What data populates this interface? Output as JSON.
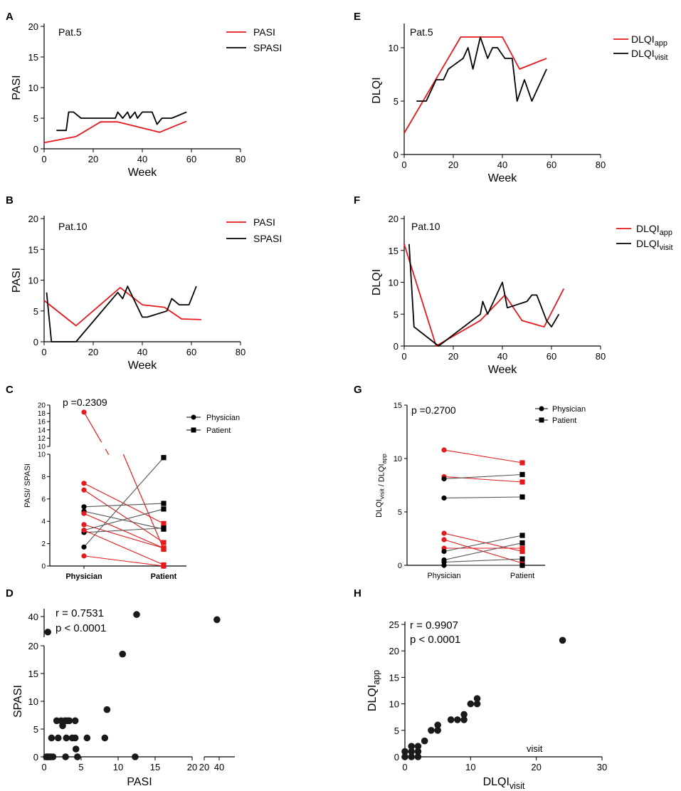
{
  "colors": {
    "red": "#e41a1c",
    "black": "#000000",
    "grey": "#777777"
  },
  "chart_data": [
    {
      "panel": "A",
      "type": "line",
      "annotation": "Pat.5",
      "xlabel": "Week",
      "ylabel": "PASI",
      "xlim": [
        0,
        80
      ],
      "ylim": [
        0,
        20
      ],
      "xticks": [
        "0",
        "20",
        "40",
        "60",
        "80"
      ],
      "yticks": [
        "0",
        "5",
        "10",
        "15",
        "20"
      ],
      "series": [
        {
          "name": "PASI",
          "color": "red",
          "x": [
            0,
            13,
            23,
            30,
            47,
            58
          ],
          "y": [
            1,
            2,
            4.4,
            4.4,
            2.7,
            4.5
          ]
        },
        {
          "name": "SPASI",
          "color": "black",
          "x": [
            5,
            9,
            10,
            12,
            15,
            24,
            29,
            30,
            32,
            34,
            35,
            37,
            38,
            40,
            42,
            44,
            46,
            48,
            50,
            52,
            58
          ],
          "y": [
            3,
            3,
            6,
            6,
            5,
            5,
            5,
            6,
            5,
            6,
            5,
            6,
            5,
            6,
            6,
            6,
            4,
            5,
            5,
            5,
            6
          ]
        }
      ]
    },
    {
      "panel": "B",
      "type": "line",
      "annotation": "Pat.10",
      "xlabel": "Week",
      "ylabel": "PASI",
      "xlim": [
        0,
        80
      ],
      "ylim": [
        0,
        20
      ],
      "xticks": [
        "0",
        "20",
        "40",
        "60",
        "80"
      ],
      "yticks": [
        "0",
        "5",
        "10",
        "15",
        "20"
      ],
      "series": [
        {
          "name": "PASI",
          "color": "red",
          "x": [
            0,
            13,
            31,
            40,
            49,
            56,
            64
          ],
          "y": [
            6.7,
            2.6,
            8.8,
            6,
            5.6,
            3.7,
            3.6
          ]
        },
        {
          "name": "SPASI",
          "color": "black",
          "x": [
            1,
            3,
            13,
            30,
            32,
            34,
            40,
            42,
            50,
            52,
            55,
            56,
            59,
            62
          ],
          "y": [
            8,
            0,
            0,
            8,
            7,
            9,
            4,
            4,
            5,
            7,
            6,
            6,
            6,
            9
          ]
        }
      ]
    },
    {
      "panel": "C",
      "type": "paired-scatter",
      "p_text": "p =0.2309",
      "ylabel": "PASI/ SPASI",
      "categories": [
        "Physician",
        "Patient"
      ],
      "legend": [
        "Physician",
        "Patient"
      ],
      "ylim_lower": [
        0,
        10
      ],
      "ylim_upper": [
        10,
        20
      ],
      "yticks_lower": [
        "0",
        "2",
        "4",
        "6",
        "8",
        "10"
      ],
      "yticks_upper": [
        "10",
        "12",
        "14",
        "16",
        "18",
        "20"
      ],
      "pairs": [
        {
          "a": 18.3,
          "b": 1.5,
          "color": "red"
        },
        {
          "a": 7.4,
          "b": 3.8,
          "color": "red"
        },
        {
          "a": 6.8,
          "b": 2.1,
          "color": "red"
        },
        {
          "a": 5.3,
          "b": 5.6,
          "color": "black"
        },
        {
          "a": 4.9,
          "b": 3.3,
          "color": "black"
        },
        {
          "a": 4.7,
          "b": 1.6,
          "color": "red"
        },
        {
          "a": 3.7,
          "b": 1.6,
          "color": "red"
        },
        {
          "a": 3.2,
          "b": 5.1,
          "color": "black"
        },
        {
          "a": 3.0,
          "b": 3.4,
          "color": "black"
        },
        {
          "a": 3.2,
          "b": 0.1,
          "color": "red"
        },
        {
          "a": 1.7,
          "b": 9.7,
          "color": "black"
        },
        {
          "a": 0.9,
          "b": 0.0,
          "color": "red"
        }
      ]
    },
    {
      "panel": "D",
      "type": "scatter",
      "r_text": "r = 0.7531",
      "p_text": "p < 0.0001",
      "xlabel": "PASI",
      "ylabel": "SPASI",
      "xticks": [
        "0",
        "5",
        "10",
        "15",
        "20",
        "20",
        "40"
      ],
      "yticks": [
        "0",
        "5",
        "10",
        "15",
        "20",
        "40"
      ],
      "x": [
        0.3,
        0.4,
        0.5,
        0.6,
        0.8,
        0.9,
        1.2,
        1.0,
        1.7,
        1.9,
        2.3,
        2.5,
        2.8,
        2.9,
        3.0,
        3.1,
        3.4,
        3.8,
        4.2,
        4.2,
        4.3,
        4.5,
        5.8,
        8.2,
        8.5,
        10.6,
        12.3,
        12.5,
        37.0,
        0.5
      ],
      "y": [
        0,
        0,
        0,
        0,
        0,
        0,
        0,
        3.4,
        6.5,
        3.4,
        6.5,
        5.6,
        6.5,
        0,
        3.4,
        6.5,
        6.5,
        3.4,
        6.5,
        3.4,
        1.4,
        0,
        3.4,
        3.4,
        8.5,
        18.5,
        0,
        42,
        37,
        25
      ]
    },
    {
      "panel": "E",
      "type": "line",
      "annotation": "Pat.5",
      "xlabel": "Week",
      "ylabel": "DLQI",
      "xlim": [
        0,
        80
      ],
      "ylim": [
        0,
        12
      ],
      "xticks": [
        "0",
        "20",
        "40",
        "60",
        "80"
      ],
      "yticks": [
        "0",
        "5",
        "10"
      ],
      "legend_labels": [
        {
          "base": "DLQI",
          "sub": "app"
        },
        {
          "base": "DLQI",
          "sub": "visit"
        }
      ],
      "series": [
        {
          "name": "DLQIapp",
          "color": "red",
          "x": [
            0,
            23,
            40,
            47,
            58
          ],
          "y": [
            2,
            11,
            11,
            8,
            9
          ]
        },
        {
          "name": "DLQIvisit",
          "color": "black",
          "x": [
            5,
            9,
            13,
            16,
            18,
            24,
            26,
            28,
            31,
            34,
            36,
            38,
            41,
            44,
            46,
            49,
            52,
            58
          ],
          "y": [
            5,
            5,
            7,
            7,
            8,
            9,
            10,
            8,
            11,
            9,
            10,
            10,
            9,
            9,
            5,
            7,
            5,
            8
          ]
        }
      ]
    },
    {
      "panel": "F",
      "type": "line",
      "annotation": "Pat.10",
      "xlabel": "Week",
      "ylabel": "DLQI",
      "xlim": [
        0,
        80
      ],
      "ylim": [
        0,
        20
      ],
      "xticks": [
        "0",
        "20",
        "40",
        "60",
        "80"
      ],
      "yticks": [
        "0",
        "5",
        "10",
        "15",
        "20"
      ],
      "legend_labels": [
        {
          "base": "DLQI",
          "sub": "app"
        },
        {
          "base": "DLQI",
          "sub": "visit"
        }
      ],
      "series": [
        {
          "name": "DLQIapp",
          "color": "red",
          "x": [
            0,
            13,
            31,
            41,
            48,
            57,
            65
          ],
          "y": [
            16,
            0,
            4,
            8,
            4,
            3,
            9
          ]
        },
        {
          "name": "DLQIvisit",
          "color": "black",
          "x": [
            2,
            4,
            14,
            31,
            32,
            34,
            40,
            42,
            50,
            52,
            54,
            55,
            58,
            60,
            63
          ],
          "y": [
            16,
            3,
            0,
            5,
            7,
            5,
            10,
            6,
            7,
            8,
            8,
            7,
            4,
            3,
            5
          ]
        }
      ]
    },
    {
      "panel": "G",
      "type": "paired-scatter",
      "p_text": "p =0.2700",
      "ylabel_parts": [
        {
          "base": "DLQI",
          "sub": "visit"
        },
        {
          "base": " / DLQI",
          "sub": "app"
        }
      ],
      "categories": [
        "Physician",
        "Patient"
      ],
      "legend": [
        "Physician",
        "Patient"
      ],
      "ylim": [
        0,
        15
      ],
      "yticks": [
        "0",
        "5",
        "10",
        "15"
      ],
      "pairs": [
        {
          "a": 10.8,
          "b": 9.6,
          "color": "red"
        },
        {
          "a": 8.3,
          "b": 7.8,
          "color": "red"
        },
        {
          "a": 8.1,
          "b": 8.5,
          "color": "black"
        },
        {
          "a": 6.3,
          "b": 6.4,
          "color": "black"
        },
        {
          "a": 3.0,
          "b": 1.3,
          "color": "red"
        },
        {
          "a": 2.4,
          "b": 0.2,
          "color": "red"
        },
        {
          "a": 1.6,
          "b": 1.6,
          "color": "red"
        },
        {
          "a": 1.3,
          "b": 2.8,
          "color": "black"
        },
        {
          "a": 0.5,
          "b": 2.1,
          "color": "black"
        },
        {
          "a": 0.3,
          "b": 0.6,
          "color": "black"
        },
        {
          "a": 0.0,
          "b": 0.0,
          "color": "black"
        }
      ]
    },
    {
      "panel": "H",
      "type": "scatter",
      "r_text": "r = 0.9907",
      "p_text": "p < 0.0001",
      "xlabel": "DLQI",
      "xlabel_sub": "visit",
      "stray_label": "visit",
      "ylabel": "DLQI",
      "ylabel_sub": "app",
      "xlim": [
        0,
        30
      ],
      "ylim": [
        0,
        25
      ],
      "xticks": [
        "0",
        "10",
        "20",
        "30"
      ],
      "yticks": [
        "0",
        "5",
        "10",
        "15",
        "20",
        "25"
      ],
      "x": [
        0,
        0,
        1,
        1,
        1,
        2,
        2,
        2,
        3,
        4,
        5,
        5,
        7,
        8,
        9,
        9,
        10,
        11,
        11,
        24
      ],
      "y": [
        0,
        1,
        2,
        1,
        0,
        1,
        2,
        0,
        3,
        5,
        5,
        6,
        7,
        7,
        7,
        8,
        10,
        10,
        11,
        22
      ]
    }
  ],
  "panel_labels": [
    "A",
    "B",
    "C",
    "D",
    "E",
    "F",
    "G",
    "H"
  ]
}
